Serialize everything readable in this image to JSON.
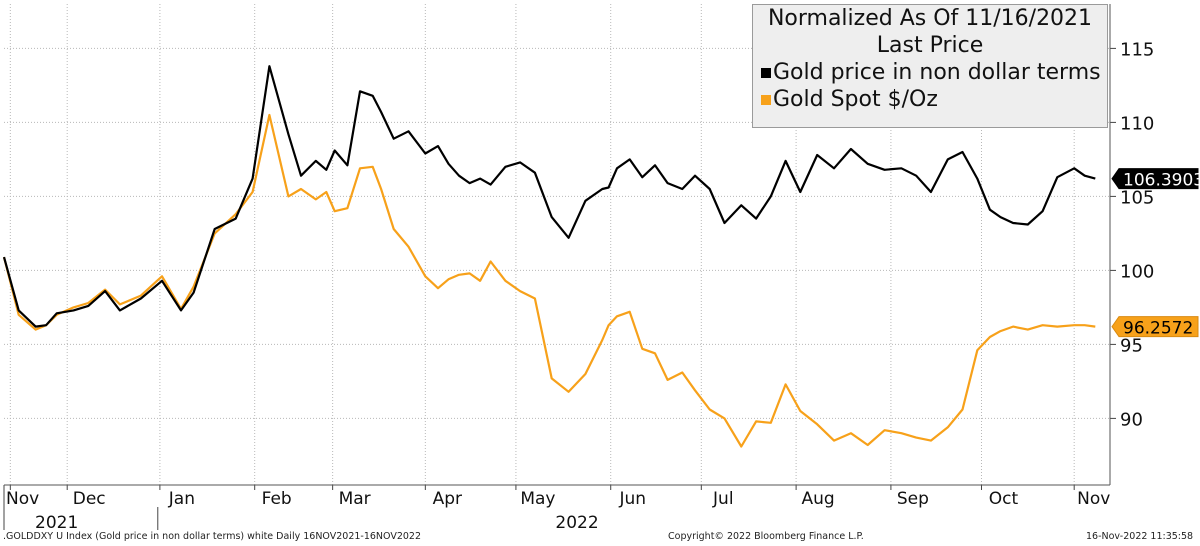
{
  "chart_data": {
    "type": "line",
    "title": "Normalized As Of 11/16/2021",
    "subtitle": "Last Price",
    "ylim": [
      85.5,
      118
    ],
    "yticks": [
      90,
      95,
      100,
      105,
      110,
      115
    ],
    "xlim": [
      0,
      52.5
    ],
    "months": [
      {
        "label": "Nov",
        "x": 0.3
      },
      {
        "label": "Dec",
        "x": 3.0
      },
      {
        "label": "Jan",
        "x": 7.4
      },
      {
        "label": "Feb",
        "x": 11.9
      },
      {
        "label": "Mar",
        "x": 15.6
      },
      {
        "label": "Apr",
        "x": 20.0
      },
      {
        "label": "May",
        "x": 24.3
      },
      {
        "label": "Jun",
        "x": 28.8
      },
      {
        "label": "Jul",
        "x": 33.1
      },
      {
        "label": "Aug",
        "x": 37.6
      },
      {
        "label": "Sep",
        "x": 42.1
      },
      {
        "label": "Oct",
        "x": 46.4
      },
      {
        "label": "Nov",
        "x": 50.8
      }
    ],
    "years": [
      {
        "label": "2021",
        "x": 2.5
      },
      {
        "label": "2022",
        "x": 27.2
      }
    ],
    "series": [
      {
        "name": "Gold price in non dollar terms",
        "color": "#000000",
        "last": "106.3903",
        "x": [
          0,
          0.7,
          1.5,
          2.0,
          2.5,
          3.3,
          4.0,
          4.8,
          5.5,
          6.5,
          7.5,
          8.4,
          9.0,
          10.0,
          11.0,
          11.8,
          12.6,
          13.5,
          14.1,
          14.8,
          15.3,
          15.7,
          16.3,
          16.9,
          17.5,
          17.9,
          18.5,
          19.2,
          20.0,
          20.6,
          21.1,
          21.6,
          22.1,
          22.6,
          23.1,
          23.8,
          24.5,
          25.2,
          26.0,
          26.8,
          27.6,
          28.4,
          28.7,
          29.1,
          29.7,
          30.3,
          30.9,
          31.5,
          32.2,
          32.8,
          33.5,
          34.2,
          35.0,
          35.7,
          36.4,
          37.1,
          37.8,
          38.6,
          39.4,
          40.2,
          41.0,
          41.8,
          42.6,
          43.3,
          44.0,
          44.8,
          45.5,
          46.2,
          46.8,
          47.3,
          47.9,
          48.6,
          49.3,
          50.0,
          50.8,
          51.3,
          51.8
        ],
        "y": [
          100.9,
          97.3,
          96.2,
          96.3,
          97.1,
          97.3,
          97.6,
          98.6,
          97.3,
          98.1,
          99.3,
          97.3,
          98.5,
          102.8,
          103.5,
          106.2,
          113.8,
          109.2,
          106.4,
          107.4,
          106.8,
          108.1,
          107.1,
          112.1,
          111.8,
          110.7,
          108.9,
          109.4,
          107.9,
          108.4,
          107.2,
          106.4,
          105.9,
          106.2,
          105.8,
          107.0,
          107.3,
          106.6,
          103.6,
          102.2,
          104.7,
          105.5,
          105.6,
          106.9,
          107.5,
          106.3,
          107.1,
          105.9,
          105.5,
          106.4,
          105.5,
          103.2,
          104.4,
          103.5,
          105.0,
          107.4,
          105.3,
          107.8,
          106.9,
          108.2,
          107.2,
          106.8,
          106.9,
          106.4,
          105.3,
          107.5,
          108.0,
          106.2,
          104.1,
          103.6,
          103.2,
          103.1,
          104.0,
          106.3,
          106.9,
          106.4,
          106.2
        ]
      },
      {
        "name": "Gold Spot $/Oz",
        "color": "#f7a11a",
        "last": "96.2572",
        "x": [
          0,
          0.7,
          1.5,
          2.0,
          2.5,
          3.3,
          4.0,
          4.8,
          5.5,
          6.5,
          7.5,
          8.4,
          9.0,
          10.0,
          11.0,
          11.8,
          12.6,
          13.5,
          14.1,
          14.8,
          15.3,
          15.7,
          16.3,
          16.9,
          17.5,
          17.9,
          18.5,
          19.2,
          20.0,
          20.6,
          21.1,
          21.6,
          22.1,
          22.6,
          23.1,
          23.8,
          24.5,
          25.2,
          26.0,
          26.8,
          27.6,
          28.4,
          28.7,
          29.1,
          29.7,
          30.3,
          30.9,
          31.5,
          32.2,
          32.8,
          33.5,
          34.2,
          35.0,
          35.7,
          36.4,
          37.1,
          37.8,
          38.6,
          39.4,
          40.2,
          41.0,
          41.8,
          42.6,
          43.3,
          44.0,
          44.8,
          45.5,
          46.2,
          46.8,
          47.3,
          47.9,
          48.6,
          49.3,
          50.0,
          50.8,
          51.3,
          51.8
        ],
        "y": [
          100.9,
          97.0,
          96.0,
          96.3,
          97.0,
          97.5,
          97.8,
          98.7,
          97.7,
          98.3,
          99.6,
          97.4,
          98.9,
          102.5,
          103.8,
          105.3,
          110.5,
          105.0,
          105.5,
          104.8,
          105.3,
          104.0,
          104.2,
          106.9,
          107.0,
          105.5,
          102.8,
          101.6,
          99.6,
          98.8,
          99.4,
          99.7,
          99.8,
          99.3,
          100.6,
          99.3,
          98.6,
          98.1,
          92.7,
          91.8,
          93.0,
          95.3,
          96.3,
          96.9,
          97.2,
          94.7,
          94.4,
          92.6,
          93.1,
          91.9,
          90.6,
          90.0,
          88.1,
          89.8,
          89.7,
          92.3,
          90.5,
          89.6,
          88.5,
          89.0,
          88.2,
          89.2,
          89.0,
          88.7,
          88.5,
          89.4,
          90.6,
          94.6,
          95.5,
          95.9,
          96.2,
          96.0,
          96.3,
          96.2,
          96.3,
          96.3,
          96.2
        ]
      }
    ]
  },
  "footer": {
    "left": ".GOLDDXY U Index (Gold price in non dollar terms) white  Daily 16NOV2021-16NOV2022",
    "center": "Copyright© 2022 Bloomberg Finance L.P.",
    "right": "16-Nov-2022 11:35:58"
  }
}
